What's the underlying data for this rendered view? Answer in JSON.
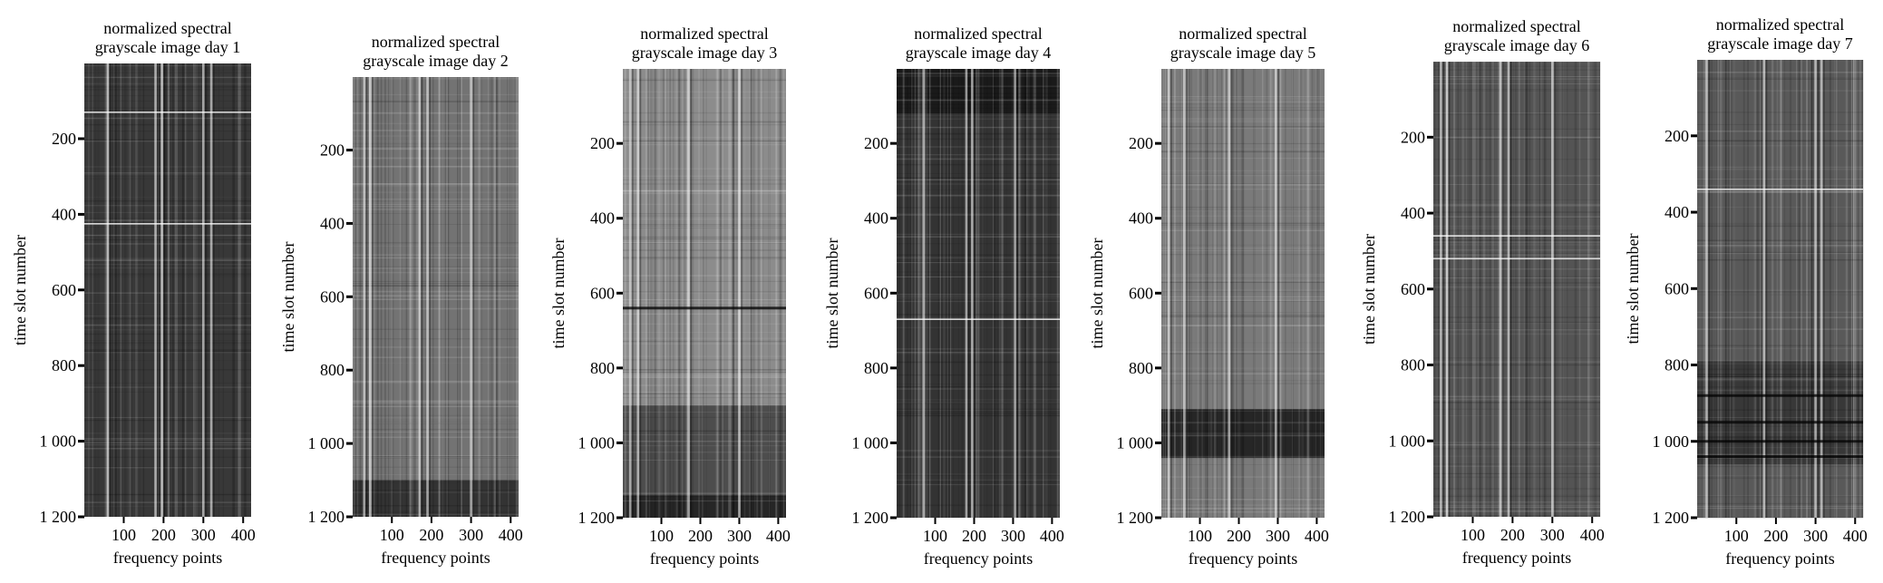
{
  "chart_data": [
    {
      "type": "heatmap",
      "title": [
        "normalized spectral",
        "grayscale image day 1"
      ],
      "xlabel": "frequency points",
      "ylabel": "time slot number",
      "xticks": [
        100,
        200,
        300,
        400
      ],
      "xlim": [
        1,
        420
      ],
      "yticks": [
        200,
        400,
        600,
        800,
        1000,
        1200
      ],
      "ytick_labels": [
        "200",
        "400",
        "600",
        "800",
        "1 000",
        "1 200"
      ],
      "ylim": [
        1,
        1200
      ],
      "tone": 0.22,
      "bright_columns": [
        60,
        180,
        196,
        300,
        320
      ],
      "bright_rows": [
        130,
        425
      ],
      "dark_rows": [],
      "bands": []
    },
    {
      "type": "heatmap",
      "title": [
        "normalized spectral",
        "grayscale image day 2"
      ],
      "xlabel": "frequency points",
      "ylabel": "time slot number",
      "xticks": [
        100,
        200,
        300,
        400
      ],
      "xlim": [
        1,
        420
      ],
      "yticks": [
        200,
        400,
        600,
        800,
        1000,
        1200
      ],
      "ytick_labels": [
        "200",
        "400",
        "600",
        "800",
        "1 000",
        "1 200"
      ],
      "ylim": [
        1,
        1200
      ],
      "tone": 0.45,
      "bright_columns": [
        30,
        45,
        170,
        190,
        300
      ],
      "bright_rows": [],
      "dark_rows": [],
      "bands": [
        {
          "from": 1100,
          "to": 1200,
          "tone": 0.2
        }
      ]
    },
    {
      "type": "heatmap",
      "title": [
        "normalized spectral",
        "grayscale image day 3"
      ],
      "xlabel": "frequency points",
      "ylabel": "time slot number",
      "xticks": [
        100,
        200,
        300,
        400
      ],
      "xlim": [
        1,
        420
      ],
      "yticks": [
        200,
        400,
        600,
        800,
        1000,
        1200
      ],
      "ytick_labels": [
        "200",
        "400",
        "600",
        "800",
        "1 000",
        "1 200"
      ],
      "ylim": [
        1,
        1200
      ],
      "tone": 0.55,
      "bright_columns": [
        20,
        40,
        170,
        300
      ],
      "bright_rows": [],
      "dark_rows": [
        640
      ],
      "bands": [
        {
          "from": 900,
          "to": 1140,
          "tone": 0.3
        },
        {
          "from": 1140,
          "to": 1200,
          "tone": 0.15
        }
      ]
    },
    {
      "type": "heatmap",
      "title": [
        "normalized spectral",
        "grayscale image day 4"
      ],
      "xlabel": "frequency points",
      "ylabel": "time slot number",
      "xticks": [
        100,
        200,
        300,
        400
      ],
      "xlim": [
        1,
        420
      ],
      "yticks": [
        200,
        400,
        600,
        800,
        1000,
        1200
      ],
      "ytick_labels": [
        "200",
        "400",
        "600",
        "800",
        "1 000",
        "1 200"
      ],
      "ylim": [
        1,
        1200
      ],
      "tone": 0.2,
      "bright_columns": [
        70,
        180,
        195,
        305
      ],
      "bright_rows": [
        670
      ],
      "dark_rows": [],
      "bands": [
        {
          "from": 1,
          "to": 120,
          "tone": 0.1
        }
      ]
    },
    {
      "type": "heatmap",
      "title": [
        "normalized spectral",
        "grayscale image day 5"
      ],
      "xlabel": "frequency points",
      "ylabel": "time slot number",
      "xticks": [
        100,
        200,
        300,
        400
      ],
      "xlim": [
        1,
        420
      ],
      "yticks": [
        200,
        400,
        600,
        800,
        1000,
        1200
      ],
      "ytick_labels": [
        "200",
        "400",
        "600",
        "800",
        "1 000",
        "1 200"
      ],
      "ylim": [
        1,
        1200
      ],
      "tone": 0.48,
      "bright_columns": [
        20,
        60,
        175,
        295
      ],
      "bright_rows": [],
      "dark_rows": [],
      "bands": [
        {
          "from": 910,
          "to": 1040,
          "tone": 0.15
        }
      ]
    },
    {
      "type": "heatmap",
      "title": [
        "normalized spectral",
        "grayscale image day 6"
      ],
      "xlabel": "frequency points",
      "ylabel": "time slot number",
      "xticks": [
        100,
        200,
        300,
        400
      ],
      "xlim": [
        1,
        420
      ],
      "yticks": [
        200,
        400,
        600,
        800,
        1000,
        1200
      ],
      "ytick_labels": [
        "200",
        "400",
        "600",
        "800",
        "1 000",
        "1 200"
      ],
      "ylim": [
        1,
        1200
      ],
      "tone": 0.33,
      "bright_columns": [
        20,
        35,
        170,
        190,
        300
      ],
      "bright_rows": [
        460,
        520
      ],
      "dark_rows": [],
      "bands": []
    },
    {
      "type": "heatmap",
      "title": [
        "normalized spectral",
        "grayscale image day 7"
      ],
      "xlabel": "frequency points",
      "ylabel": "time slot number",
      "xticks": [
        100,
        200,
        300,
        400
      ],
      "xlim": [
        1,
        420
      ],
      "yticks": [
        200,
        400,
        600,
        800,
        1000,
        1200
      ],
      "ytick_labels": [
        "200",
        "400",
        "600",
        "800",
        "1 000",
        "1 200"
      ],
      "ylim": [
        1,
        1200
      ],
      "tone": 0.35,
      "bright_columns": [
        25,
        170,
        300,
        315
      ],
      "bright_rows": [
        340
      ],
      "dark_rows": [
        880,
        950,
        1000,
        1040
      ],
      "bands": [
        {
          "from": 790,
          "to": 1060,
          "tone": 0.22
        }
      ]
    }
  ]
}
